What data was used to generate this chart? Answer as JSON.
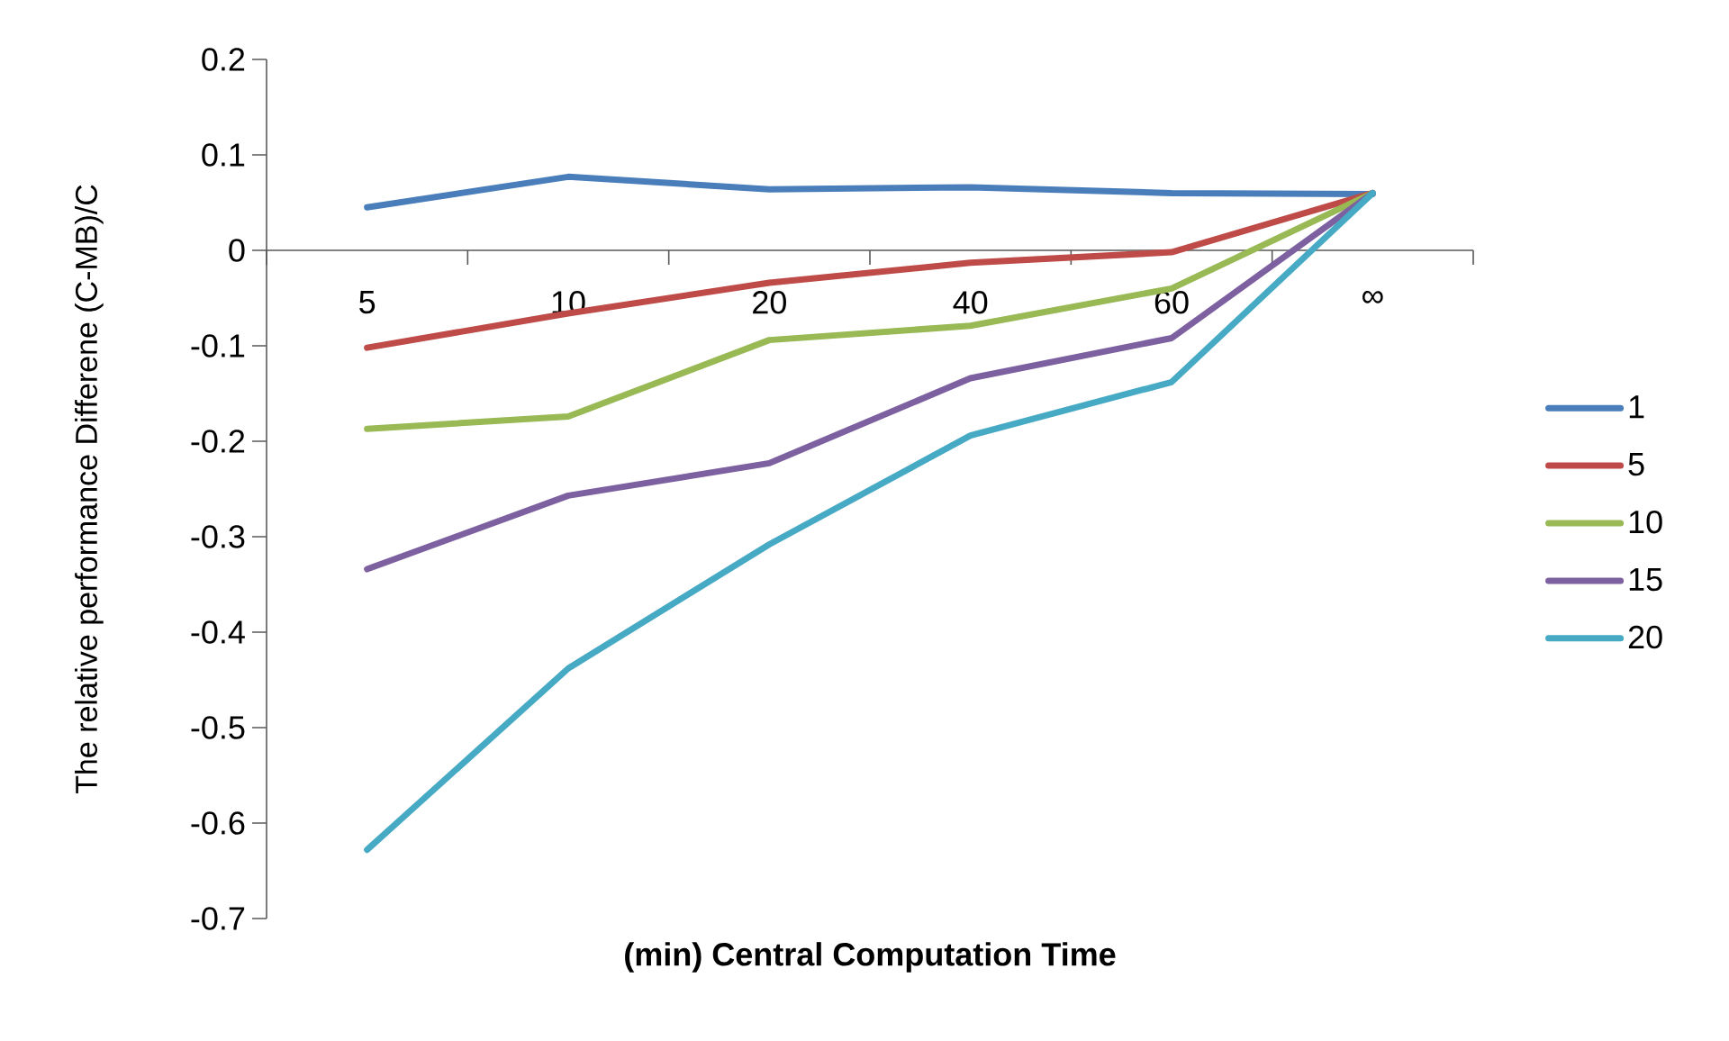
{
  "chart_data": {
    "type": "line",
    "xlabel": "(min) Central Computation Time",
    "ylabel": "The relative performance Differene (C-MB)/C",
    "categories": [
      "5",
      "10",
      "20",
      "40",
      "60",
      "∞"
    ],
    "series": [
      {
        "name": "1",
        "color": "#4a7ebb",
        "values": [
          0.045,
          0.077,
          0.064,
          0.066,
          0.06,
          0.059
        ]
      },
      {
        "name": "5",
        "color": "#be4b48",
        "values": [
          -0.102,
          -0.066,
          -0.034,
          -0.013,
          -0.002,
          0.06
        ]
      },
      {
        "name": "10",
        "color": "#98b954",
        "values": [
          -0.187,
          -0.174,
          -0.094,
          -0.079,
          -0.04,
          0.06
        ]
      },
      {
        "name": "15",
        "color": "#7d60a0",
        "values": [
          -0.334,
          -0.257,
          -0.223,
          -0.134,
          -0.092,
          0.06
        ]
      },
      {
        "name": "20",
        "color": "#46aac5",
        "values": [
          -0.628,
          -0.438,
          -0.308,
          -0.194,
          -0.138,
          0.06
        ]
      }
    ],
    "ylim": [
      -0.7,
      0.2
    ],
    "yticks": [
      0.2,
      0.1,
      0,
      -0.1,
      -0.2,
      -0.3,
      -0.4,
      -0.5,
      -0.6,
      -0.7
    ],
    "legend": "right",
    "marker": "none",
    "line_style": "solid",
    "grid": false
  }
}
